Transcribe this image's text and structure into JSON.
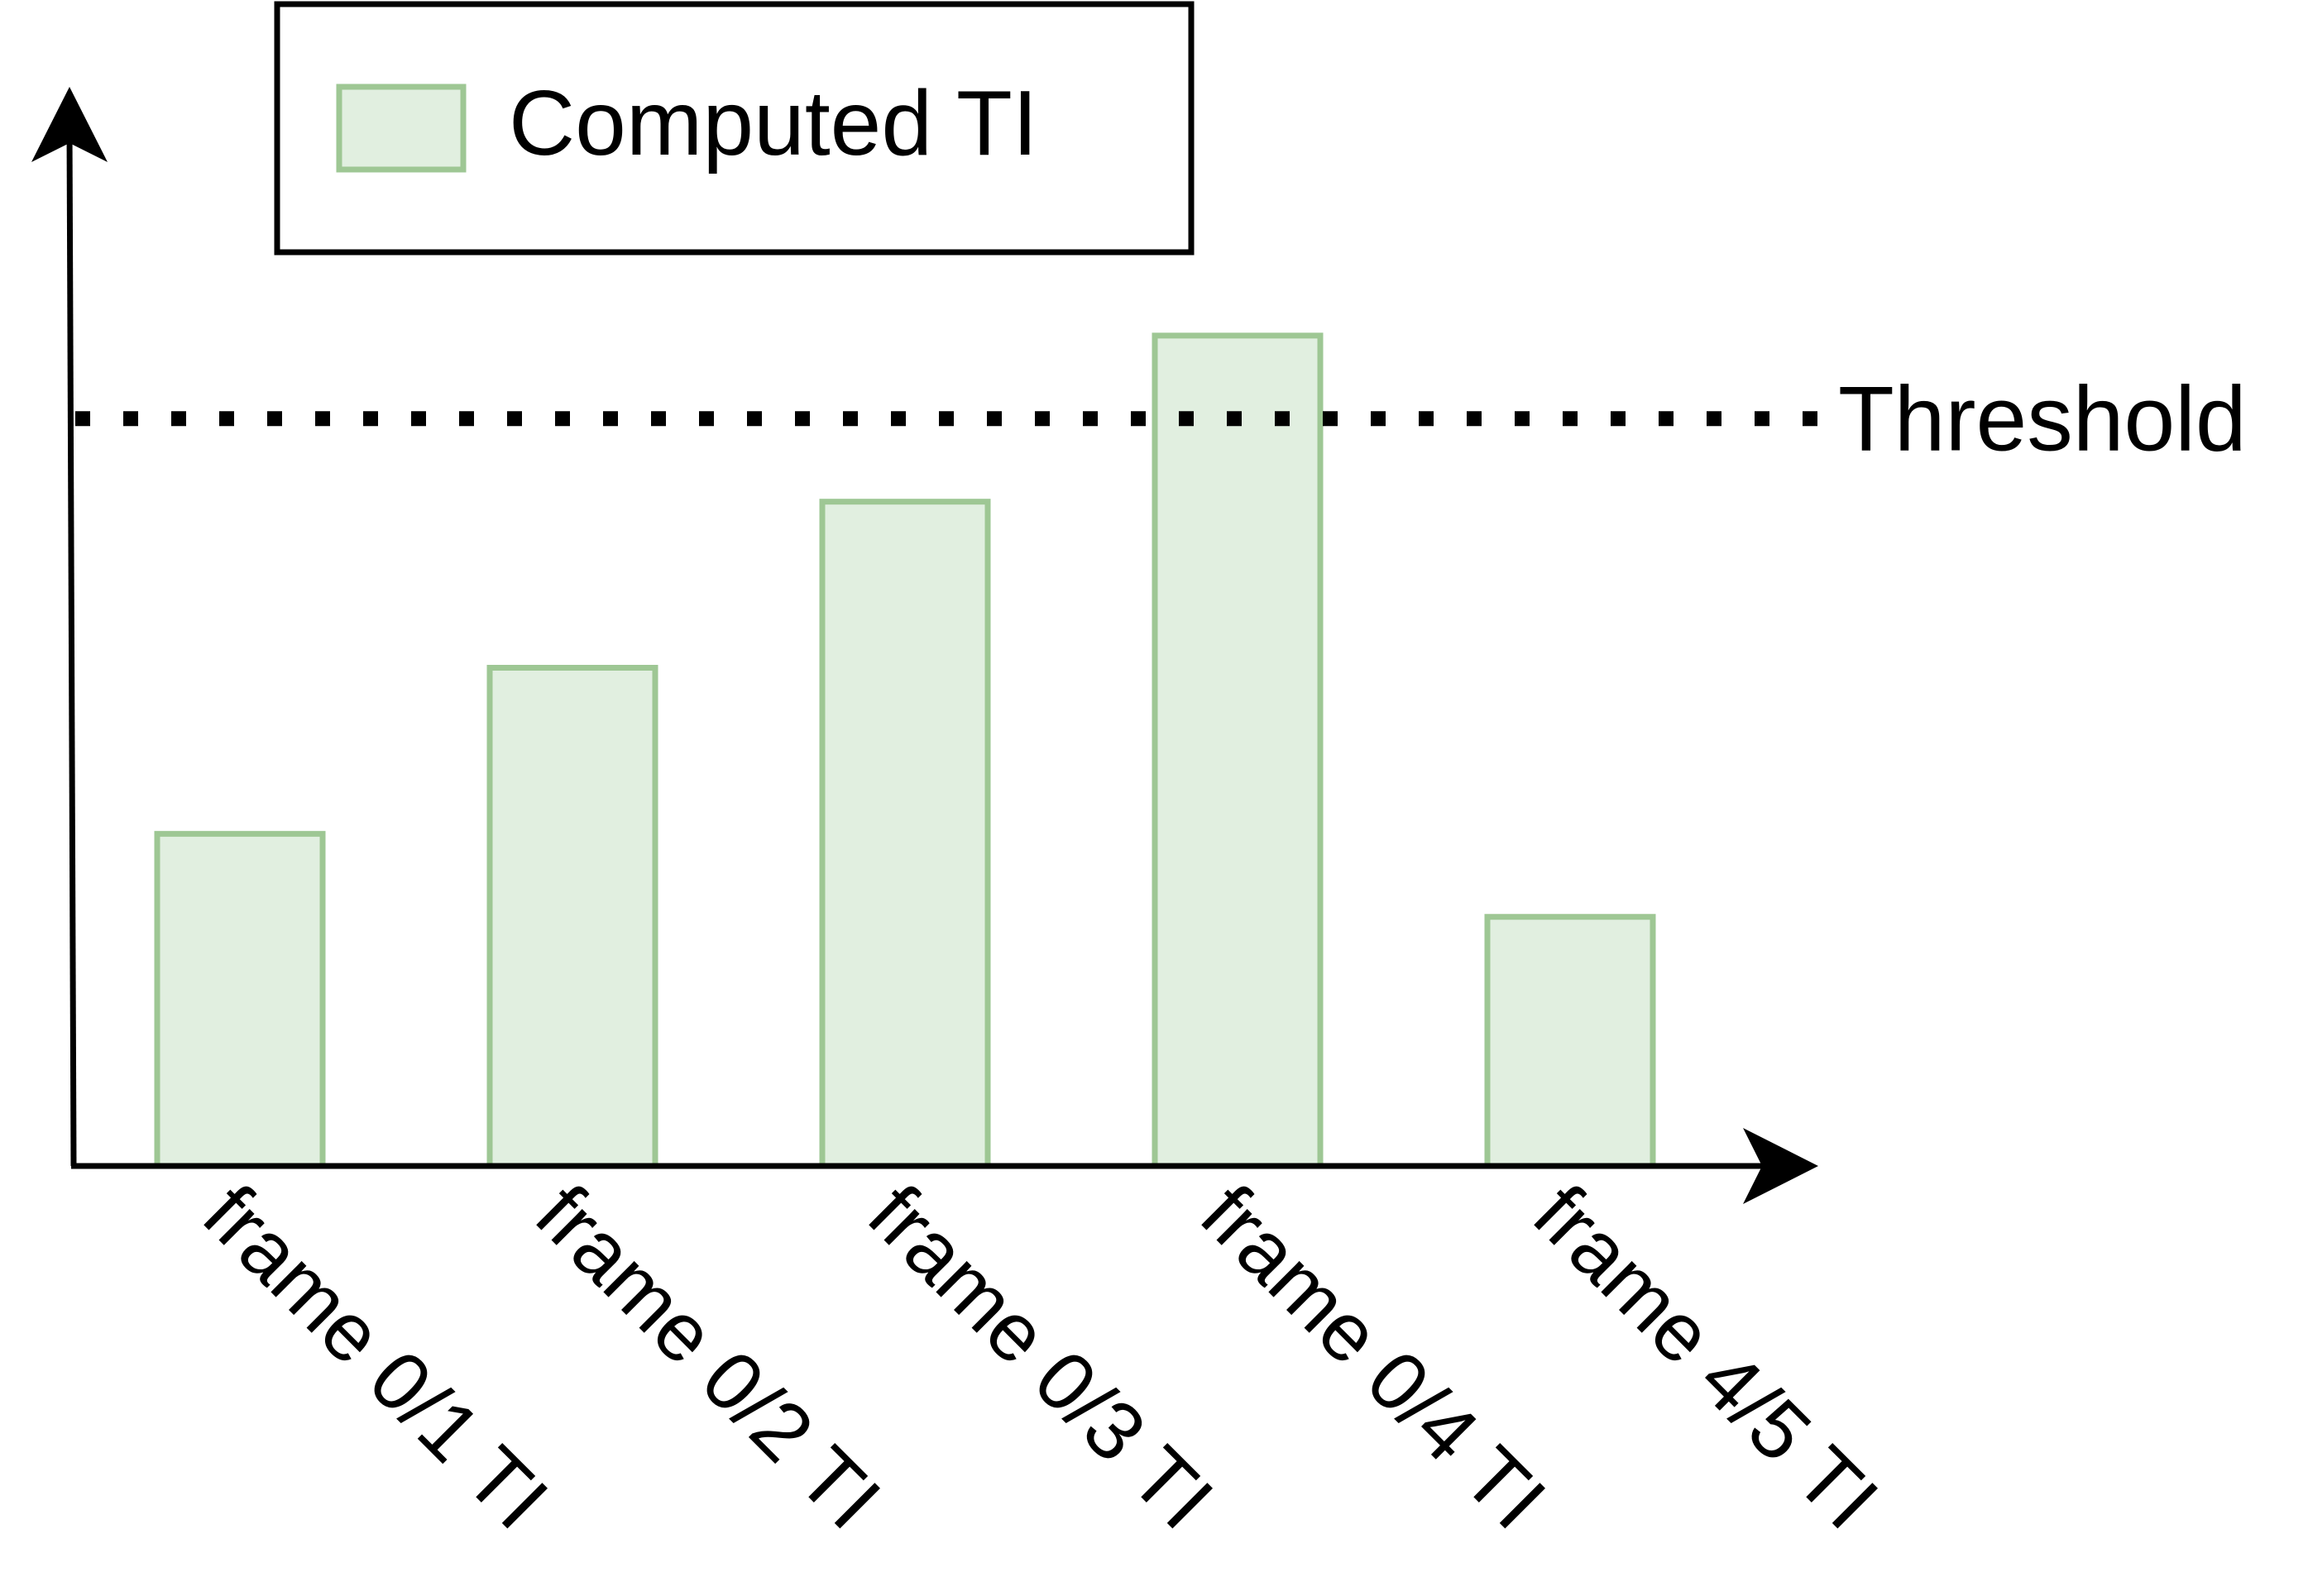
{
  "chart_data": {
    "type": "bar",
    "title": "",
    "xlabel": "",
    "ylabel": "",
    "categories": [
      "frame 0/1 TI",
      "frame 0/2 TI",
      "frame 0/3 TI",
      "frame 0/4 TI",
      "frame 4/5 TI"
    ],
    "series": [
      {
        "name": "Computed TI",
        "values": [
          4,
          6,
          8,
          10,
          3
        ]
      }
    ],
    "ylim": [
      0,
      12
    ],
    "threshold": {
      "label": "Threshold",
      "value": 9
    },
    "grid": false,
    "legend": "top-left",
    "colors": {
      "bar_fill": "#e1efe0",
      "bar_stroke": "#9ec794",
      "axis": "#000000",
      "threshold_line": "#000000"
    }
  }
}
